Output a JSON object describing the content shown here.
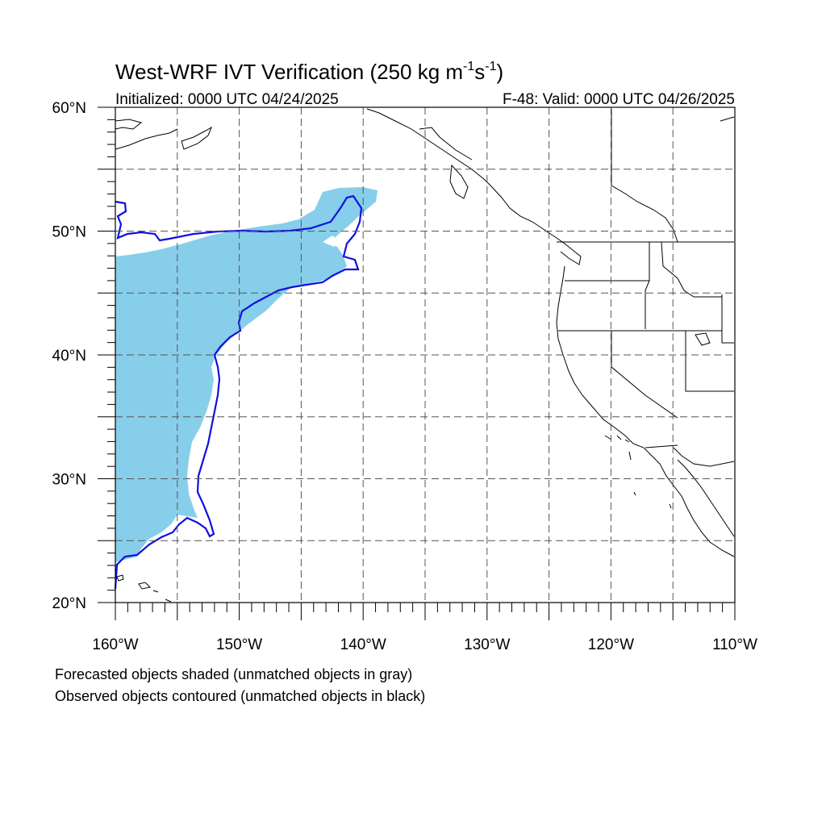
{
  "title": {
    "main": "West-WRF IVT Verification (250 kg m",
    "sup1": "-1",
    "mid": "s",
    "sup2": "-1",
    "end": ")"
  },
  "initialized": "Initialized: 0000 UTC 04/24/2025",
  "valid": "F-48: Valid: 0000 UTC 04/26/2025",
  "lon_labels": [
    "160°W",
    "150°W",
    "140°W",
    "130°W",
    "120°W",
    "110°W"
  ],
  "lat_labels": [
    "60°N",
    "50°N",
    "40°N",
    "30°N",
    "20°N"
  ],
  "notes": {
    "forecast": "Forecasted objects shaded (unmatched objects in gray)",
    "observed": "Observed objects contoured (unmatched objects in black)"
  },
  "chart_data": {
    "type": "map",
    "projection": "cylindrical-equidistant",
    "lon_range": [
      -160,
      -110
    ],
    "lat_range": [
      20,
      60
    ],
    "gridlines": "dashed every 5 degrees",
    "colors": {
      "forecast_fill": "#87ceeb",
      "observed_contour": "#1010e0",
      "coast": "#000000",
      "grid": "#555555"
    },
    "forecast_object": {
      "matched": true,
      "polygon": [
        [
          -160,
          48
        ],
        [
          -157,
          48.3
        ],
        [
          -154,
          48.6
        ],
        [
          -151,
          48.8
        ],
        [
          -148,
          49.3
        ],
        [
          -145,
          49.8
        ],
        [
          -142.5,
          50.4
        ],
        [
          -141,
          51.5
        ],
        [
          -139.5,
          53
        ],
        [
          -138.8,
          53.5
        ],
        [
          -140,
          53.6
        ],
        [
          -142,
          53.1
        ],
        [
          -144,
          52.2
        ],
        [
          -146,
          51.3
        ],
        [
          -149,
          50.8
        ],
        [
          -152,
          50.4
        ],
        [
          -155,
          50
        ],
        [
          -157,
          49.8
        ],
        [
          -160,
          49.8
        ]
      ],
      "note": "representative outline"
    },
    "observed_object": {
      "matched": true,
      "note": "representative outline"
    }
  }
}
